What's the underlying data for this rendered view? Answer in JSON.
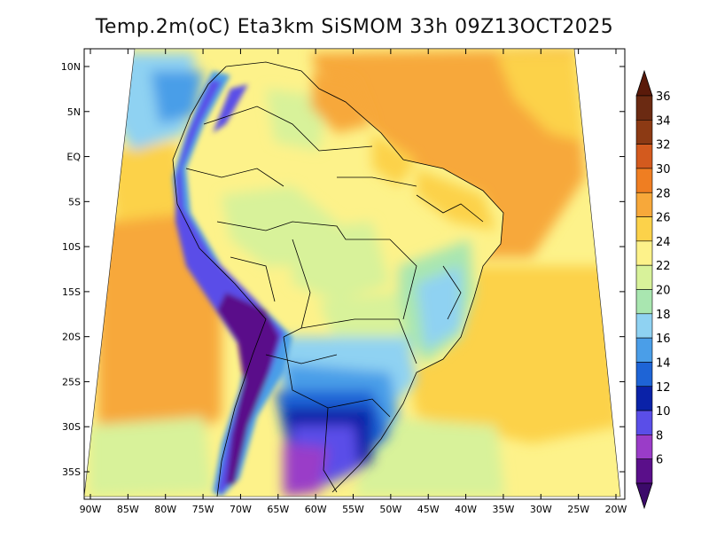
{
  "title": "Temp.2m(oC) Eta3km SiSMOM 33h 09Z13OCT2025",
  "map": {
    "lon_ticks": [
      {
        "label": "90W",
        "value": -90
      },
      {
        "label": "85W",
        "value": -85
      },
      {
        "label": "80W",
        "value": -80
      },
      {
        "label": "75W",
        "value": -75
      },
      {
        "label": "70W",
        "value": -70
      },
      {
        "label": "65W",
        "value": -65
      },
      {
        "label": "60W",
        "value": -60
      },
      {
        "label": "55W",
        "value": -55
      },
      {
        "label": "50W",
        "value": -50
      },
      {
        "label": "45W",
        "value": -45
      },
      {
        "label": "40W",
        "value": -40
      },
      {
        "label": "35W",
        "value": -35
      },
      {
        "label": "30W",
        "value": -30
      },
      {
        "label": "25W",
        "value": -25
      },
      {
        "label": "20W",
        "value": -20
      }
    ],
    "lat_ticks": [
      {
        "label": "10N",
        "value": 10
      },
      {
        "label": "5N",
        "value": 5
      },
      {
        "label": "EQ",
        "value": 0
      },
      {
        "label": "5S",
        "value": -5
      },
      {
        "label": "10S",
        "value": -10
      },
      {
        "label": "15S",
        "value": -15
      },
      {
        "label": "20S",
        "value": -20
      },
      {
        "label": "25S",
        "value": -25
      },
      {
        "label": "30S",
        "value": -30
      },
      {
        "label": "35S",
        "value": -35
      }
    ],
    "lon_range": [
      -90,
      -20
    ],
    "lat_range": [
      -37.5,
      10.5
    ]
  },
  "colorbar": {
    "levels": [
      {
        "label": "36",
        "color": "#6b2a12"
      },
      {
        "label": "34",
        "color": "#8c3a14"
      },
      {
        "label": "32",
        "color": "#d35a1e"
      },
      {
        "label": "30",
        "color": "#ef7e22"
      },
      {
        "label": "28",
        "color": "#f7a83a"
      },
      {
        "label": "26",
        "color": "#fcd24a"
      },
      {
        "label": "24",
        "color": "#fdf28a"
      },
      {
        "label": "22",
        "color": "#d8f29a"
      },
      {
        "label": "20",
        "color": "#a9e6b0"
      },
      {
        "label": "18",
        "color": "#8fd2f2"
      },
      {
        "label": "16",
        "color": "#4a9ee8"
      },
      {
        "label": "14",
        "color": "#1e64d6"
      },
      {
        "label": "12",
        "color": "#0a22a8"
      },
      {
        "label": "10",
        "color": "#5a4ee8"
      },
      {
        "label": "8",
        "color": "#9a3cc8"
      },
      {
        "label": "6",
        "color": "#5a0f8a"
      }
    ],
    "top_color": "#5a1a0a",
    "bottom_color": "#3c0a6a"
  }
}
